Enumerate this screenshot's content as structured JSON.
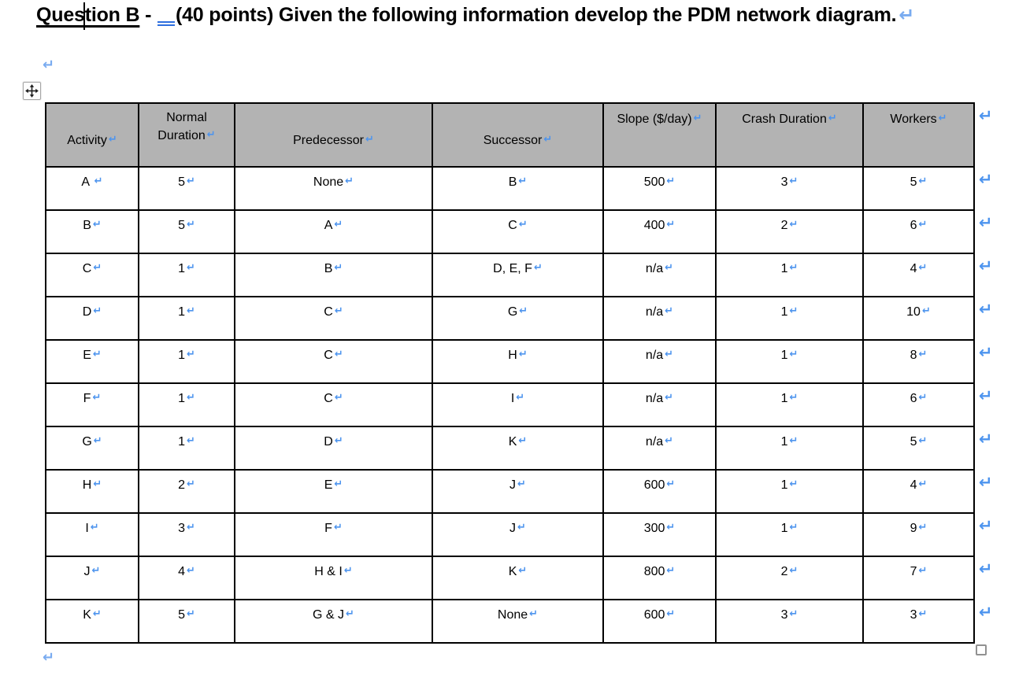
{
  "title": {
    "underlined": "Question B",
    "dash": " - ",
    "rest": "(40 points) Given the following information develop the PDM network diagram."
  },
  "marks": {
    "pilcrow": "↵"
  },
  "table": {
    "headers": [
      "Activity",
      "Normal Duration",
      "Predecessor",
      "Successor",
      "Slope ($/day)",
      "Crash Duration",
      "Workers"
    ],
    "rows": [
      [
        "A ",
        "5",
        "None",
        "B",
        "500",
        "3",
        "5"
      ],
      [
        "B",
        "5",
        "A",
        "C",
        "400",
        "2",
        "6"
      ],
      [
        "C",
        "1",
        "B",
        "D, E, F",
        "n/a",
        "1",
        "4"
      ],
      [
        "D",
        "1",
        "C",
        "G",
        "n/a",
        "1",
        "10"
      ],
      [
        "E",
        "1",
        "C",
        "H",
        "n/a",
        "1",
        "8"
      ],
      [
        "F",
        "1",
        "C",
        "I",
        "n/a",
        "1",
        "6"
      ],
      [
        "G",
        "1",
        "D",
        "K",
        "n/a",
        "1",
        "5"
      ],
      [
        "H",
        "2",
        "E",
        "J",
        "600",
        "1",
        "4"
      ],
      [
        "I",
        "3",
        "F",
        "J",
        "300",
        "1",
        "9"
      ],
      [
        "J",
        "4",
        "H & I",
        "K",
        "800",
        "2",
        "7"
      ],
      [
        "K",
        "5",
        "G & J",
        "None",
        "600",
        "3",
        "3"
      ]
    ]
  },
  "colors": {
    "header_bg": "#b3b3b3",
    "mark_blue": "#4d94ee",
    "mark_soft": "#79abf0",
    "grammar_blue": "#2e6fdf",
    "border": "#000000"
  }
}
